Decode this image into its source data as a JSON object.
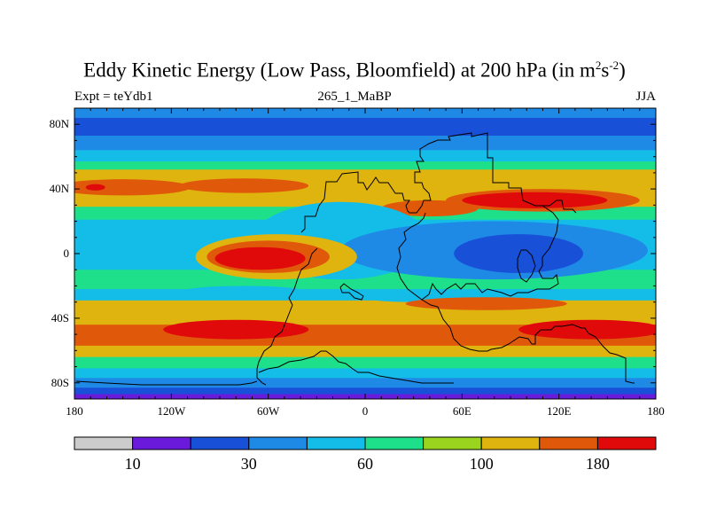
{
  "title": {
    "main": "Eddy Kinetic Energy (Low Pass, Bloomfield) at 200 hPa (in m",
    "sup1": "2",
    "mid": "s",
    "sup2": "-2",
    "close": ")"
  },
  "subtitle": {
    "left": "Expt = teYdb1",
    "center": "265_1_MaBP",
    "right": "JJA"
  },
  "chart_data": {
    "type": "heatmap",
    "title": "Eddy Kinetic Energy (Low Pass, Bloomfield) at 200 hPa (in m2s-2)",
    "x_axis": {
      "range": [
        -180,
        180
      ],
      "ticks": [
        -180,
        -120,
        -60,
        0,
        60,
        120,
        180
      ],
      "tick_labels": [
        "180",
        "120W",
        "60W",
        "0",
        "60E",
        "120E",
        "180"
      ]
    },
    "y_axis": {
      "range": [
        -90,
        90
      ],
      "ticks": [
        80,
        40,
        0,
        -40,
        -80
      ],
      "tick_labels": [
        "80N",
        "40N",
        "0",
        "40S",
        "80S"
      ]
    },
    "colorbar": {
      "colors": [
        "#cccccc",
        "#6a1adb",
        "#1850d8",
        "#1e8ae6",
        "#14bce8",
        "#1ee08a",
        "#9ad41e",
        "#e0b40e",
        "#e0580a",
        "#e00a0a"
      ],
      "tick_labels": [
        "10",
        "30",
        "60",
        "100",
        "180"
      ]
    },
    "color_key": {
      "low": "#1850d8",
      "mid-low": "#1e8ae6",
      "mid": "#14bce8",
      "mid-high": "#1ee08a",
      "high": "#e0b40e",
      "very-high": "#e0580a",
      "max": "#e00a0a",
      "deep": "#6a1adb"
    },
    "bands": [
      {
        "lat": [
          84,
          90
        ],
        "level": "mid-low"
      },
      {
        "lat": [
          73,
          84
        ],
        "level": "low"
      },
      {
        "lat": [
          64,
          73
        ],
        "level": "mid-low"
      },
      {
        "lat": [
          57,
          64
        ],
        "level": "mid"
      },
      {
        "lat": [
          52,
          57
        ],
        "level": "mid-high"
      },
      {
        "lat": [
          47,
          52
        ],
        "level": "high"
      },
      {
        "lat": [
          29,
          47
        ],
        "level": "high"
      },
      {
        "lat": [
          21,
          29
        ],
        "level": "mid-high"
      },
      {
        "lat": [
          10,
          21
        ],
        "level": "mid"
      },
      {
        "lat": [
          -10,
          10
        ],
        "level": "mid"
      },
      {
        "lat": [
          -22,
          -10
        ],
        "level": "mid-high"
      },
      {
        "lat": [
          -29,
          -22
        ],
        "level": "mid"
      },
      {
        "lat": [
          -37,
          -29
        ],
        "level": "high"
      },
      {
        "lat": [
          -44,
          -37
        ],
        "level": "high"
      },
      {
        "lat": [
          -57,
          -44
        ],
        "level": "very-high"
      },
      {
        "lat": [
          -64,
          -57
        ],
        "level": "high"
      },
      {
        "lat": [
          -71,
          -64
        ],
        "level": "mid-high"
      },
      {
        "lat": [
          -77,
          -71
        ],
        "level": "mid"
      },
      {
        "lat": [
          -83,
          -77
        ],
        "level": "mid-low"
      },
      {
        "lat": [
          -87,
          -83
        ],
        "level": "low"
      },
      {
        "lat": [
          -90,
          -87
        ],
        "level": "deep"
      }
    ],
    "blobs": [
      {
        "lon": -150,
        "lat": 41,
        "rlon": 42,
        "rlat": 5,
        "level": "very-high"
      },
      {
        "lon": -75,
        "lat": 42,
        "rlon": 40,
        "rlat": 4.5,
        "level": "very-high"
      },
      {
        "lon": -167,
        "lat": 41,
        "rlon": 6,
        "rlat": 2,
        "level": "max"
      },
      {
        "lon": 40,
        "lat": 28,
        "rlon": 30,
        "rlat": 5,
        "level": "very-high"
      },
      {
        "lon": 110,
        "lat": 33,
        "rlon": 60,
        "rlat": 7,
        "level": "very-high"
      },
      {
        "lon": 105,
        "lat": 33,
        "rlon": 45,
        "rlat": 5,
        "level": "max"
      },
      {
        "lon": -15,
        "lat": 8,
        "rlon": 55,
        "rlat": 24,
        "level": "mid"
      },
      {
        "lon": 80,
        "lat": 2,
        "rlon": 95,
        "rlat": 18,
        "level": "mid-low"
      },
      {
        "lon": 95,
        "lat": 0,
        "rlon": 40,
        "rlat": 12,
        "level": "low"
      },
      {
        "lon": -55,
        "lat": -2,
        "rlon": 50,
        "rlat": 14,
        "level": "high"
      },
      {
        "lon": -60,
        "lat": -2,
        "rlon": 38,
        "rlat": 10,
        "level": "very-high"
      },
      {
        "lon": -65,
        "lat": -3,
        "rlon": 28,
        "rlat": 7,
        "level": "max"
      },
      {
        "lon": -75,
        "lat": -24,
        "rlon": 40,
        "rlat": 4,
        "level": "mid"
      },
      {
        "lon": 30,
        "lat": -26,
        "rlon": 35,
        "rlat": 4,
        "level": "mid"
      },
      {
        "lon": 75,
        "lat": -31,
        "rlon": 50,
        "rlat": 4,
        "level": "very-high"
      },
      {
        "lon": -80,
        "lat": -47,
        "rlon": 45,
        "rlat": 6,
        "level": "max"
      },
      {
        "lon": 140,
        "lat": -47,
        "rlon": 45,
        "rlat": 6,
        "level": "max"
      }
    ]
  }
}
